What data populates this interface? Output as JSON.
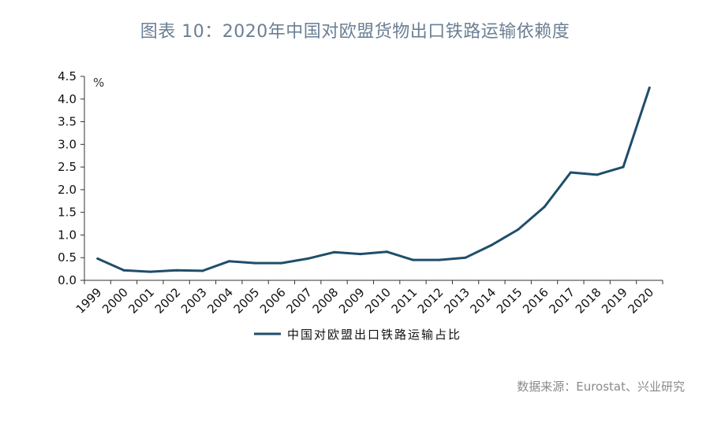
{
  "chart_data": {
    "type": "line",
    "title": "图表 10：2020年中国对欧盟货物出口铁路运输依赖度",
    "unit": "%",
    "x": [
      "1999",
      "2000",
      "2001",
      "2002",
      "2003",
      "2004",
      "2005",
      "2006",
      "2007",
      "2008",
      "2009",
      "2010",
      "2011",
      "2012",
      "2013",
      "2014",
      "2015",
      "2016",
      "2017",
      "2018",
      "2019",
      "2020"
    ],
    "series": [
      {
        "name": "中国对欧盟出口铁路运输占比",
        "values": [
          0.48,
          0.22,
          0.19,
          0.22,
          0.21,
          0.42,
          0.38,
          0.38,
          0.48,
          0.62,
          0.58,
          0.63,
          0.45,
          0.45,
          0.5,
          0.78,
          1.12,
          1.62,
          2.38,
          2.33,
          2.5,
          4.25
        ]
      }
    ],
    "yticks": [
      "0.0",
      "0.5",
      "1.0",
      "1.5",
      "2.0",
      "2.5",
      "3.0",
      "3.5",
      "4.0",
      "4.5"
    ],
    "ylim": [
      0,
      4.5
    ],
    "grid": false,
    "legend_position": "bottom",
    "line_color": "#1f4e6b"
  },
  "source": "数据来源：Eurostat、兴业研究"
}
